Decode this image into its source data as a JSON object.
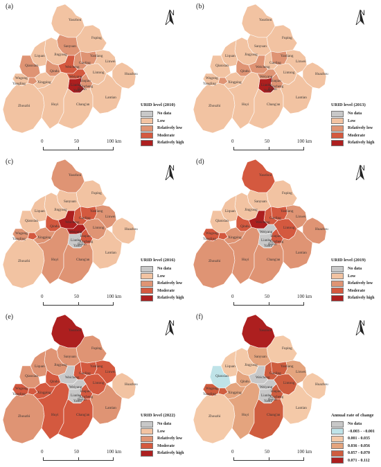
{
  "colors": {
    "no_data": "#c8c8c8",
    "low": "#f2c3a2",
    "relatively_low": "#df9474",
    "moderate": "#d4593f",
    "relatively_high": "#ad1f1f",
    "r1": "#bfe3e8",
    "r2": "#f4c9a8",
    "r3": "#e4a47e",
    "r4": "#cf5d3f",
    "r5": "#ad1f1f"
  },
  "north_label": "N",
  "scale": {
    "t0": "0",
    "t1": "50",
    "t2": "100 km"
  },
  "place_names": {
    "yaozhou": "Yaozhou",
    "fuping": "Fuping",
    "sanyuan": "Sanyuan",
    "yanliang": "Yanliang",
    "jingyang": "Jingyang",
    "liquan": "Liquan",
    "linwei": "Linwei",
    "qianxian": "Qianxian",
    "gaoling": "Gaoling",
    "huazhou": "Huazhou",
    "weicheng": "Weicheng",
    "qindu": "Qindu",
    "lintong": "Lintong",
    "wugong": "Wugong",
    "xingping": "Xingping",
    "yangling": "Yangling",
    "weiyang": "Weiyang",
    "baqiao": "Baqiao",
    "lianhu": "Lianhu",
    "xincheng": "Xincheng",
    "yanta": "Yanta",
    "beilin": "Beilin",
    "zhouzhi": "Zhouzhi",
    "huyi": "Huyi",
    "changan": "Chang'an",
    "lantian": "Lantian"
  },
  "panels": [
    {
      "label": "(a)",
      "legend_title": "URID level (2010)",
      "legend_items": [
        {
          "label": "No data",
          "color_key": "no_data"
        },
        {
          "label": "Low",
          "color_key": "low"
        },
        {
          "label": "Relatively low",
          "color_key": "relatively_low"
        },
        {
          "label": "Moderate",
          "color_key": "moderate"
        },
        {
          "label": "Relatively high",
          "color_key": "relatively_high"
        }
      ],
      "regions": {
        "yaozhou": "low",
        "fuping": "low",
        "sanyuan": "relatively_low",
        "yanliang": "relatively_low",
        "jingyang": "low",
        "liquan": "low",
        "linwei": "low",
        "qianxian": "relatively_low",
        "gaoling": "relatively_low",
        "huazhou": "low",
        "weicheng": "moderate",
        "qindu": "relatively_low",
        "lintong": "low",
        "wugong": "low",
        "xingping": "low",
        "yangling": "relatively_low",
        "weiyang": "moderate",
        "baqiao": "relatively_low",
        "core": "relatively_high",
        "zhouzhi": "low",
        "huyi": "low",
        "changan": "low",
        "lantian": "low"
      }
    },
    {
      "label": "(b)",
      "legend_title": "URID level (2013)",
      "legend_items": [
        {
          "label": "No data",
          "color_key": "no_data"
        },
        {
          "label": "Low",
          "color_key": "low"
        },
        {
          "label": "Relatively low",
          "color_key": "relatively_low"
        },
        {
          "label": "Moderate",
          "color_key": "moderate"
        },
        {
          "label": "Relatively high",
          "color_key": "relatively_high"
        }
      ],
      "regions": {
        "yaozhou": "low",
        "fuping": "low",
        "sanyuan": "low",
        "yanliang": "relatively_low",
        "jingyang": "low",
        "liquan": "low",
        "linwei": "low",
        "qianxian": "low",
        "gaoling": "low",
        "huazhou": "low",
        "weicheng": "relatively_low",
        "qindu": "relatively_low",
        "lintong": "low",
        "wugong": "low",
        "xingping": "low",
        "yangling": "relatively_low",
        "weiyang": "relatively_low",
        "baqiao": "relatively_low",
        "core": "relatively_high",
        "zhouzhi": "low",
        "huyi": "low",
        "changan": "low",
        "lantian": "low"
      }
    },
    {
      "label": "(c)",
      "legend_title": "URID level (2016)",
      "legend_items": [
        {
          "label": "No data",
          "color_key": "no_data"
        },
        {
          "label": "Low",
          "color_key": "low"
        },
        {
          "label": "Relatively low",
          "color_key": "relatively_low"
        },
        {
          "label": "Moderate",
          "color_key": "moderate"
        },
        {
          "label": "Relatively high",
          "color_key": "relatively_high"
        }
      ],
      "regions": {
        "yaozhou": "relatively_low",
        "fuping": "low",
        "sanyuan": "low",
        "yanliang": "moderate",
        "jingyang": "low",
        "liquan": "low",
        "linwei": "relatively_low",
        "qianxian": "low",
        "gaoling": "moderate",
        "huazhou": "low",
        "weicheng": "relatively_high",
        "qindu": "moderate",
        "lintong": "relatively_low",
        "wugong": "relatively_low",
        "xingping": "relatively_low",
        "yangling": "moderate",
        "weiyang": "relatively_high",
        "baqiao": "moderate",
        "core": "no_data",
        "zhouzhi": "low",
        "huyi": "relatively_low",
        "changan": "relatively_low",
        "lantian": "low"
      }
    },
    {
      "label": "(d)",
      "legend_title": "URID  level (2019)",
      "legend_items": [
        {
          "label": "No data",
          "color_key": "no_data"
        },
        {
          "label": "Low",
          "color_key": "low"
        },
        {
          "label": "Relatively low",
          "color_key": "relatively_low"
        },
        {
          "label": "Moderate",
          "color_key": "moderate"
        },
        {
          "label": "Relatively high",
          "color_key": "relatively_high"
        }
      ],
      "regions": {
        "yaozhou": "moderate",
        "fuping": "low",
        "sanyuan": "low",
        "yanliang": "moderate",
        "jingyang": "low",
        "liquan": "low",
        "linwei": "relatively_low",
        "qianxian": "low",
        "gaoling": "moderate",
        "huazhou": "relatively_low",
        "weicheng": "relatively_high",
        "qindu": "moderate",
        "lintong": "moderate",
        "wugong": "moderate",
        "xingping": "relatively_low",
        "yangling": "moderate",
        "weiyang": "no_data",
        "baqiao": "moderate",
        "core": "no_data",
        "zhouzhi": "relatively_low",
        "huyi": "relatively_low",
        "changan": "relatively_low",
        "lantian": "relatively_low"
      }
    },
    {
      "label": "(e)",
      "legend_title": "URID level (2022)",
      "legend_items": [
        {
          "label": "No data",
          "color_key": "no_data"
        },
        {
          "label": "Low",
          "color_key": "low"
        },
        {
          "label": "Relatively low",
          "color_key": "relatively_low"
        },
        {
          "label": "Moderate",
          "color_key": "moderate"
        },
        {
          "label": "Relatively high",
          "color_key": "relatively_high"
        }
      ],
      "regions": {
        "yaozhou": "relatively_high",
        "fuping": "relatively_low",
        "sanyuan": "relatively_low",
        "yanliang": "moderate",
        "jingyang": "relatively_low",
        "liquan": "relatively_low",
        "linwei": "moderate",
        "qianxian": "relatively_low",
        "gaoling": "moderate",
        "huazhou": "low",
        "weicheng": "no_data",
        "qindu": "moderate",
        "lintong": "moderate",
        "wugong": "moderate",
        "xingping": "moderate",
        "yangling": "moderate",
        "weiyang": "no_data",
        "baqiao": "moderate",
        "core": "no_data",
        "zhouzhi": "relatively_low",
        "huyi": "moderate",
        "changan": "moderate",
        "lantian": "relatively_low"
      }
    },
    {
      "label": "(f)",
      "legend_title": "Annual rate of change",
      "legend_items": [
        {
          "label": "No data",
          "color_key": "no_data"
        },
        {
          "label": "−0.003 - −0.001",
          "color_key": "r1"
        },
        {
          "label": "0.001 - 0.035",
          "color_key": "r2"
        },
        {
          "label": "0.036 - 0.056",
          "color_key": "r3"
        },
        {
          "label": "0.057 - 0.070",
          "color_key": "r4"
        },
        {
          "label": "0.071 - 0.112",
          "color_key": "r5"
        }
      ],
      "regions": {
        "yaozhou": "r5",
        "fuping": "r2",
        "sanyuan": "r3",
        "yanliang": "r4",
        "jingyang": "r2",
        "liquan": "r2",
        "linwei": "r3",
        "qianxian": "r1",
        "gaoling": "r4",
        "huazhou": "r2",
        "weicheng": "no_data",
        "qindu": "r3",
        "lintong": "r4",
        "wugong": "r4",
        "xingping": "r3",
        "yangling": "r4",
        "weiyang": "no_data",
        "baqiao": "r4",
        "core": "no_data",
        "zhouzhi": "r2",
        "huyi": "r3",
        "changan": "r4",
        "lantian": "r2"
      }
    }
  ]
}
